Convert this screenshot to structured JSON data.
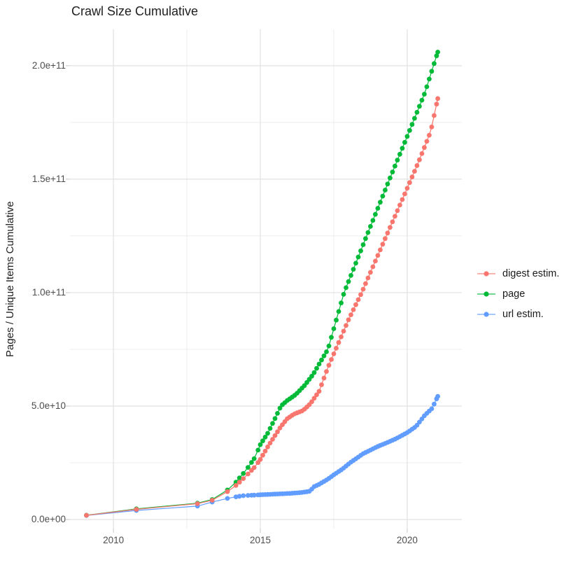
{
  "chart_data": {
    "type": "scatter",
    "title": "Crawl Size Cumulative",
    "xlabel": "",
    "ylabel": "Pages / Unique Items Cumulative",
    "grid": true,
    "legend_position": "right",
    "x_domain": [
      2008.52,
      2021.86
    ],
    "y_domain": [
      -4000000000.0,
      216000000000.0
    ],
    "x_ticks": [
      {
        "value": 2010,
        "label": "2010"
      },
      {
        "value": 2015,
        "label": "2015"
      },
      {
        "value": 2020,
        "label": "2020"
      }
    ],
    "x_minor": [
      2012.5,
      2017.5
    ],
    "y_ticks": [
      {
        "value": 0,
        "label": "0.0e+00"
      },
      {
        "value": 50000000000.0,
        "label": "5.0e+10"
      },
      {
        "value": 100000000000.0,
        "label": "1.0e+11"
      },
      {
        "value": 150000000000.0,
        "label": "1.5e+11"
      },
      {
        "value": 200000000000.0,
        "label": "2.0e+11"
      }
    ],
    "y_minor": [
      25000000000.0,
      75000000000.0,
      125000000000.0,
      175000000000.0
    ],
    "sample_years": {
      "early": [
        2009.08,
        2010.78,
        2012.86,
        2013.36,
        2013.88
      ],
      "y2014": [
        2014.17,
        2014.29,
        2014.42,
        2014.58,
        2014.7,
        2014.79,
        2014.92
      ],
      "monthly_from": 2015.0,
      "monthly_to": 2021.04
    },
    "series": [
      {
        "id": "digest-estim",
        "name": "digest estim.",
        "color": "#F8766D",
        "points": [
          [
            2009.08,
            1850000000.0
          ],
          [
            2010.78,
            4500000000.0
          ],
          [
            2012.86,
            7000000000.0
          ],
          [
            2013.36,
            8500000000.0
          ],
          [
            2013.88,
            12300000000.0
          ],
          [
            2014.17,
            15000000000.0
          ],
          [
            2014.5,
            19000000000.0
          ],
          [
            2014.8,
            23000000000.0
          ],
          [
            2015.0,
            26500000000.0
          ],
          [
            2015.25,
            32000000000.0
          ],
          [
            2015.5,
            37000000000.0
          ],
          [
            2015.7,
            41000000000.0
          ],
          [
            2015.92,
            44500000000.0
          ],
          [
            2016.15,
            46500000000.0
          ],
          [
            2016.45,
            48000000000.0
          ],
          [
            2016.7,
            51000000000.0
          ],
          [
            2017.0,
            56500000000.0
          ],
          [
            2017.3,
            67000000000.0
          ],
          [
            2017.6,
            76000000000.0
          ],
          [
            2018.0,
            88000000000.0
          ],
          [
            2018.45,
            100000000000.0
          ],
          [
            2019.29,
            125000000000.0
          ],
          [
            2019.9,
            143000000000.0
          ],
          [
            2020.4,
            158000000000.0
          ],
          [
            2020.8,
            171000000000.0
          ],
          [
            2021.04,
            185500000000.0
          ]
        ]
      },
      {
        "id": "page",
        "name": "page",
        "color": "#00BA38",
        "points": [
          [
            2009.08,
            1900000000.0
          ],
          [
            2010.78,
            4700000000.0
          ],
          [
            2012.86,
            7200000000.0
          ],
          [
            2013.36,
            8800000000.0
          ],
          [
            2013.88,
            13000000000.0
          ],
          [
            2014.17,
            16500000000.0
          ],
          [
            2014.5,
            21500000000.0
          ],
          [
            2014.8,
            27000000000.0
          ],
          [
            2015.0,
            33000000000.0
          ],
          [
            2015.25,
            38000000000.0
          ],
          [
            2015.5,
            44500000000.0
          ],
          [
            2015.7,
            50000000000.0
          ],
          [
            2015.92,
            52500000000.0
          ],
          [
            2016.2,
            55000000000.0
          ],
          [
            2016.5,
            59000000000.0
          ],
          [
            2016.8,
            64000000000.0
          ],
          [
            2017.0,
            68500000000.0
          ],
          [
            2017.3,
            75000000000.0
          ],
          [
            2017.85,
            100000000000.0
          ],
          [
            2018.62,
            125000000000.0
          ],
          [
            2019.4,
            150000000000.0
          ],
          [
            2020.1,
            172000000000.0
          ],
          [
            2020.6,
            188000000000.0
          ],
          [
            2021.04,
            206000000000.0
          ]
        ]
      },
      {
        "id": "url-estim",
        "name": "url estim.",
        "color": "#619CFF",
        "points": [
          [
            2009.08,
            1800000000.0
          ],
          [
            2010.78,
            4000000000.0
          ],
          [
            2012.86,
            5900000000.0
          ],
          [
            2013.36,
            7700000000.0
          ],
          [
            2013.88,
            9300000000.0
          ],
          [
            2014.17,
            10000000000.0
          ],
          [
            2014.4,
            10500000000.0
          ],
          [
            2015.0,
            10900000000.0
          ],
          [
            2015.5,
            11200000000.0
          ],
          [
            2016.0,
            11500000000.0
          ],
          [
            2016.4,
            11900000000.0
          ],
          [
            2016.7,
            12500000000.0
          ],
          [
            2016.8,
            14300000000.0
          ],
          [
            2017.0,
            15500000000.0
          ],
          [
            2017.3,
            17800000000.0
          ],
          [
            2017.5,
            19700000000.0
          ],
          [
            2017.8,
            22300000000.0
          ],
          [
            2018.05,
            25000000000.0
          ],
          [
            2018.5,
            29000000000.0
          ],
          [
            2019.0,
            32200000000.0
          ],
          [
            2019.3,
            33800000000.0
          ],
          [
            2019.6,
            35500000000.0
          ],
          [
            2020.0,
            38300000000.0
          ],
          [
            2020.3,
            41000000000.0
          ],
          [
            2020.6,
            46000000000.0
          ],
          [
            2020.85,
            49000000000.0
          ],
          [
            2021.04,
            54300000000.0
          ]
        ]
      }
    ],
    "colors": {
      "background": "#FFFFFF",
      "grid_major": "#E2E2E2",
      "grid_minor": "#EDEDED",
      "tick_mark": "#C9C9C9",
      "axis_text": "#4D4D4D",
      "title_text": "#1F1F1F"
    }
  }
}
